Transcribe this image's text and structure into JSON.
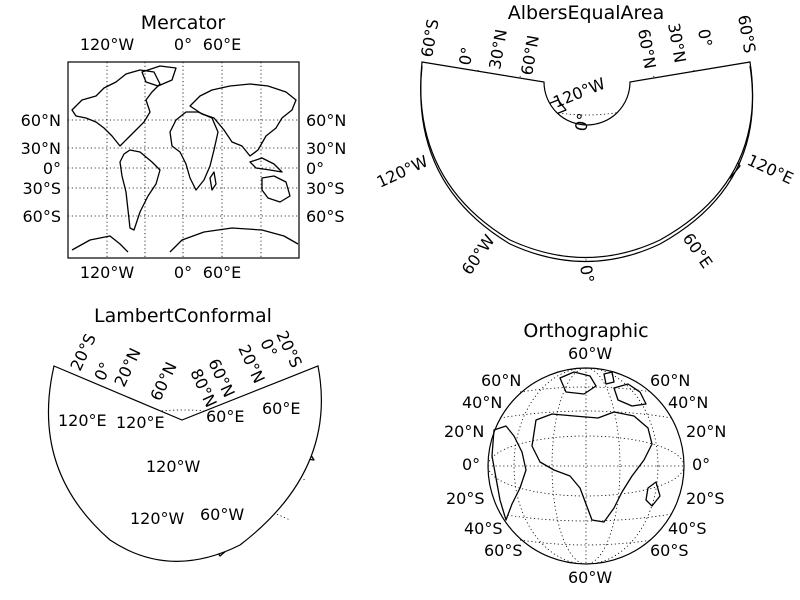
{
  "maps": [
    {
      "id": "mercator",
      "title": "Mercator",
      "labels": [
        "120°W",
        "0°",
        "60°E",
        "120°W",
        "0°",
        "60°E",
        "60°N",
        "30°N",
        "0°",
        "30°S",
        "60°S",
        "60°N",
        "30°N",
        "0°",
        "30°S",
        "60°S"
      ]
    },
    {
      "id": "albers",
      "title": "AlbersEqualArea",
      "labels": [
        "60°S",
        "0°",
        "30°N",
        "60°N",
        "60°N",
        "30°N",
        "0°",
        "60°S",
        "120°W",
        "0°",
        "120°W",
        "60°W",
        "0°",
        "60°E",
        "120°E"
      ]
    },
    {
      "id": "lambert",
      "title": "LambertConformal",
      "labels": [
        "20°S",
        "0°",
        "20°N",
        "60°N",
        "80°N",
        "60°N",
        "20°N",
        "0°",
        "20°S",
        "120°E",
        "120°E",
        "60°E",
        "60°E",
        "120°W",
        "120°W",
        "60°W"
      ]
    },
    {
      "id": "orthographic",
      "title": "Orthographic",
      "labels": [
        "60°W",
        "60°N",
        "40°N",
        "20°N",
        "0°",
        "20°S",
        "40°S",
        "60°S",
        "60°N",
        "40°N",
        "20°N",
        "0°",
        "20°S",
        "40°S",
        "60°S",
        "60°W"
      ]
    }
  ]
}
